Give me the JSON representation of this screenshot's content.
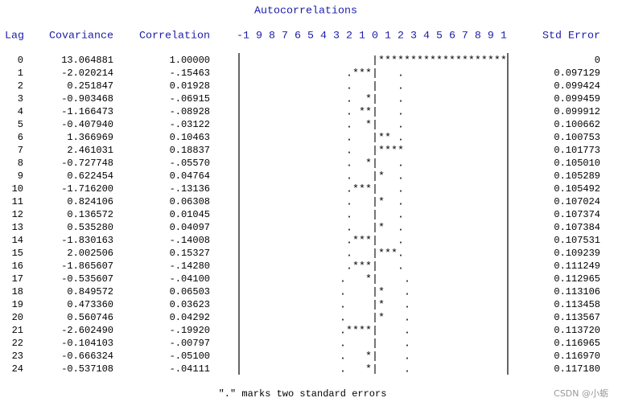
{
  "title": "Autocorrelations",
  "headers": {
    "lag": "Lag",
    "covariance": "Covariance",
    "correlation": "Correlation",
    "scale": "-1 9 8 7 6 5 4 3 2 1 0 1 2 3 4 5 6 7 8 9 1",
    "std_error": "Std Error"
  },
  "rows": [
    [
      "0",
      "13.064881",
      "1.00000",
      "                    |********************",
      "0"
    ],
    [
      "1",
      "-2.020214",
      "-.15463",
      "                .***|   .                ",
      "0.097129"
    ],
    [
      "2",
      "0.251847",
      "0.01928",
      "                .   |   .                ",
      "0.099424"
    ],
    [
      "3",
      "-0.903468",
      "-.06915",
      "                .  *|   .                ",
      "0.099459"
    ],
    [
      "4",
      "-1.166473",
      "-.08928",
      "                . **|   .                ",
      "0.099912"
    ],
    [
      "5",
      "-0.407940",
      "-.03122",
      "                .  *|   .                ",
      "0.100662"
    ],
    [
      "6",
      "1.366969",
      "0.10463",
      "                .   |** .                ",
      "0.100753"
    ],
    [
      "7",
      "2.461031",
      "0.18837",
      "                .   |****                ",
      "0.101773"
    ],
    [
      "8",
      "-0.727748",
      "-.05570",
      "                .  *|   .                ",
      "0.105010"
    ],
    [
      "9",
      "0.622454",
      "0.04764",
      "                .   |*  .                ",
      "0.105289"
    ],
    [
      "10",
      "-1.716200",
      "-.13136",
      "                .***|   .                ",
      "0.105492"
    ],
    [
      "11",
      "0.824106",
      "0.06308",
      "                .   |*  .                ",
      "0.107024"
    ],
    [
      "12",
      "0.136572",
      "0.01045",
      "                .   |   .                ",
      "0.107374"
    ],
    [
      "13",
      "0.535280",
      "0.04097",
      "                .   |*  .                ",
      "0.107384"
    ],
    [
      "14",
      "-1.830163",
      "-.14008",
      "                .***|   .                ",
      "0.107531"
    ],
    [
      "15",
      "2.002506",
      "0.15327",
      "                .   |***.                ",
      "0.109239"
    ],
    [
      "16",
      "-1.865607",
      "-.14280",
      "                .***|   .                ",
      "0.111249"
    ],
    [
      "17",
      "-0.535607",
      "-.04100",
      "               .   *|    .               ",
      "0.112965"
    ],
    [
      "18",
      "0.849572",
      "0.06503",
      "               .    |*   .               ",
      "0.113106"
    ],
    [
      "19",
      "0.473360",
      "0.03623",
      "               .    |*   .               ",
      "0.113458"
    ],
    [
      "20",
      "0.560746",
      "0.04292",
      "               .    |*   .               ",
      "0.113567"
    ],
    [
      "21",
      "-2.602490",
      "-.19920",
      "               .****|    .               ",
      "0.113720"
    ],
    [
      "22",
      "-0.104103",
      "-.00797",
      "               .    |    .               ",
      "0.116965"
    ],
    [
      "23",
      "-0.666324",
      "-.05100",
      "               .   *|    .               ",
      "0.116970"
    ],
    [
      "24",
      "-0.537108",
      "-.04111",
      "               .   *|    .               ",
      "0.117180"
    ]
  ],
  "footnote": "\".\" marks two standard errors",
  "watermark": "CSDN @小蛎"
}
